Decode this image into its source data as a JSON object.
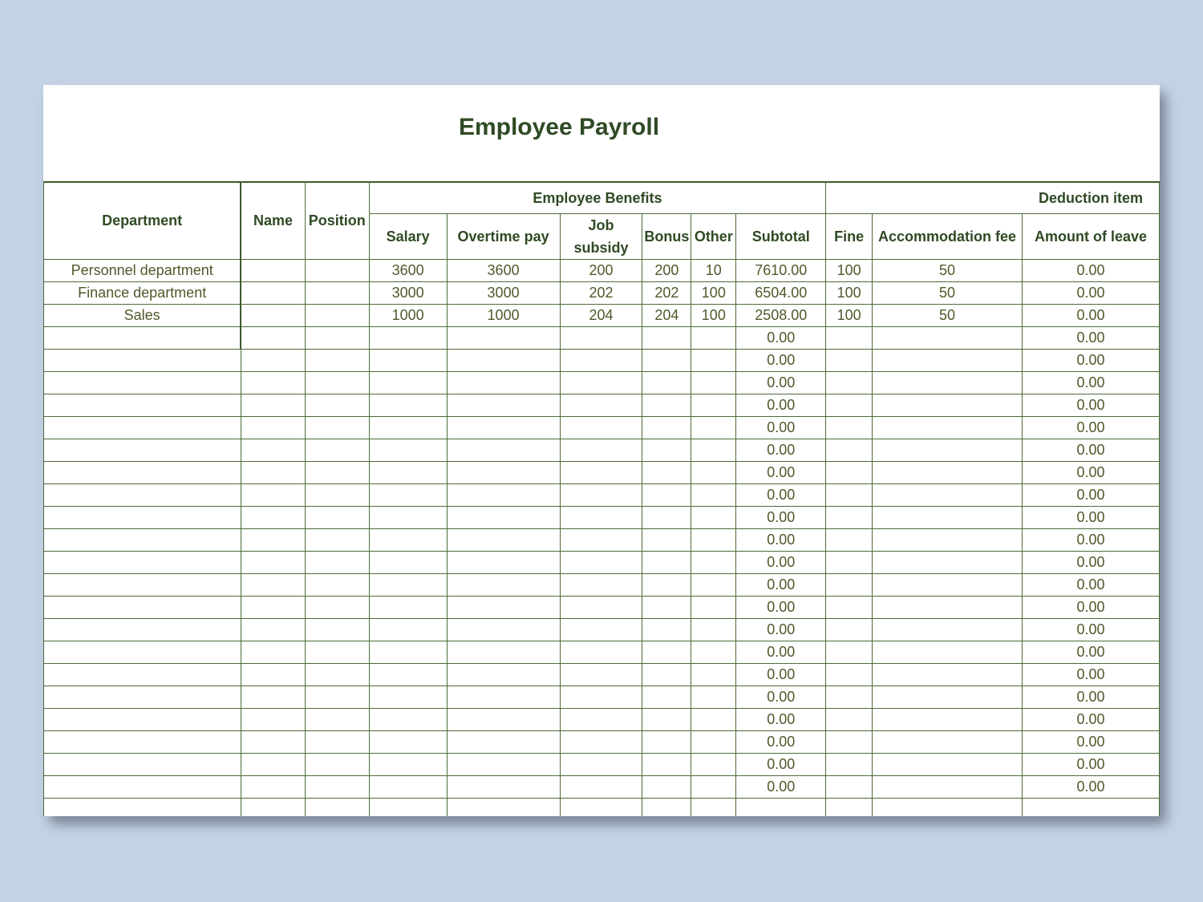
{
  "title": "Employee Payroll",
  "headers": {
    "department": "Department",
    "name": "Name",
    "position": "Position",
    "benefits": "Employee Benefits",
    "deductions": "Deduction item",
    "salary": "Salary",
    "overtime": "Overtime pay",
    "job_subsidy": "Job subsidy",
    "bonus": "Bonus",
    "other": "Other",
    "subtotal": "Subtotal",
    "fine": "Fine",
    "accommodation": "Accommodation fee",
    "leave": "Amount of leave"
  },
  "rows": [
    {
      "department": "Personnel department",
      "name": "",
      "position": "",
      "salary": "3600",
      "overtime": "3600",
      "job_subsidy": "200",
      "bonus": "200",
      "other": "10",
      "subtotal": "7610.00",
      "fine": "100",
      "accommodation": "50",
      "leave": "0.00"
    },
    {
      "department": "Finance department",
      "name": "",
      "position": "",
      "salary": "3000",
      "overtime": "3000",
      "job_subsidy": "202",
      "bonus": "202",
      "other": "100",
      "subtotal": "6504.00",
      "fine": "100",
      "accommodation": "50",
      "leave": "0.00"
    },
    {
      "department": "Sales",
      "name": "",
      "position": "",
      "salary": "1000",
      "overtime": "1000",
      "job_subsidy": "204",
      "bonus": "204",
      "other": "100",
      "subtotal": "2508.00",
      "fine": "100",
      "accommodation": "50",
      "leave": "0.00"
    }
  ],
  "empty_row_subtotal": "0.00",
  "empty_row_leave": "0.00",
  "empty_row_count": 21
}
